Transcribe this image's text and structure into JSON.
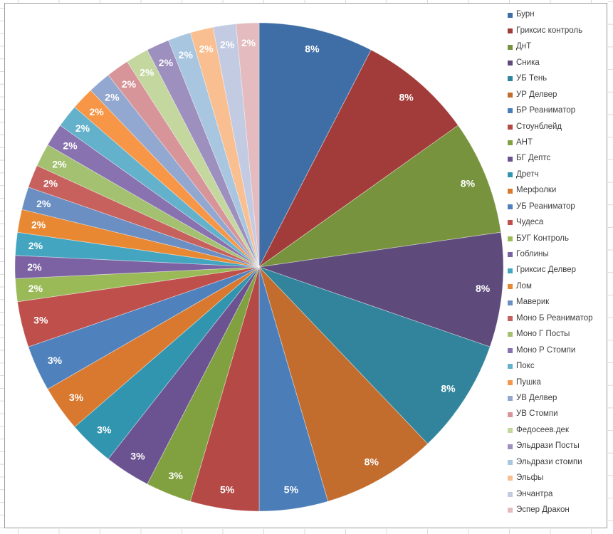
{
  "chart_data": {
    "type": "pie",
    "title": "",
    "legend_position": "right",
    "categories": [
      "Бурн",
      "Гриксис контроль",
      "ДнТ",
      "Сника",
      "УБ Тень",
      "УР Делвер",
      "БР Реаниматор",
      "Стоунблейд",
      "АНТ",
      "БГ Дептс",
      "Дретч",
      "Мерфолки",
      "УБ Реаниматор",
      "Чудеса",
      "БУГ Контроль",
      "Гоблины",
      "Гриксис Делвер",
      "Лом",
      "Маверик",
      "Моно Б Реаниматор",
      "Моно Г Посты",
      "Моно Р Стомпи",
      "Покс",
      "Пушка",
      "УВ Делвер",
      "УВ Стомпи",
      "Федосеев.дек",
      "Эльдрази Посты",
      "Эльдрази стомпи",
      "Эльфы",
      "Энчантра",
      "Эспер Дракон"
    ],
    "values": [
      8,
      8,
      8,
      8,
      8,
      8,
      5,
      5,
      3,
      3,
      3,
      3,
      3,
      3,
      2,
      2,
      2,
      2,
      2,
      2,
      2,
      2,
      2,
      2,
      2,
      2,
      2,
      2,
      2,
      2,
      2,
      2
    ],
    "percent_labels": [
      "8%",
      "8%",
      "8%",
      "8%",
      "8%",
      "8%",
      "5%",
      "5%",
      "3%",
      "3%",
      "3%",
      "3%",
      "3%",
      "3%",
      "2%",
      "2%",
      "2%",
      "2%",
      "2%",
      "2%",
      "2%",
      "2%",
      "2%",
      "2%",
      "2%",
      "2%",
      "2%",
      "2%",
      "2%",
      "2%",
      "2%",
      "2%"
    ],
    "angle_units": [
      5,
      5,
      5,
      5,
      5,
      5,
      3,
      3,
      2,
      2,
      2,
      2,
      2,
      2,
      1,
      1,
      1,
      1,
      1,
      1,
      1,
      1,
      1,
      1,
      1,
      1,
      1,
      1,
      1,
      1,
      1,
      1
    ],
    "angle_units_total": 66,
    "start_angle_deg": 0,
    "direction": "clockwise",
    "colors": [
      "#3F6EA6",
      "#A23C3A",
      "#77933D",
      "#5F4A7C",
      "#31849B",
      "#C26C2E",
      "#4B7DB9",
      "#B54945",
      "#81A141",
      "#6B5391",
      "#3295AF",
      "#D9792F",
      "#4F81BD",
      "#BF4F4B",
      "#9ABA58",
      "#7C62A2",
      "#43A5C0",
      "#E98833",
      "#6B8FC3",
      "#C6615E",
      "#A3C170",
      "#8872B0",
      "#63B1CB",
      "#F79646",
      "#93A8D0",
      "#D79599",
      "#C3D79F",
      "#9D8FBE",
      "#A8C6DF",
      "#FABF90",
      "#C3CBE3",
      "#E4BBBE"
    ]
  },
  "styles": {
    "percent_label_color": "#ffffff",
    "legend_text_color": "#3e3e3e",
    "slice_divider_color": "rgba(255,255,255,0.45)",
    "chart_border_color": "#9b9b9b",
    "spreadsheet_grid_color": "#d9d9d9",
    "background": "#ffffff"
  }
}
